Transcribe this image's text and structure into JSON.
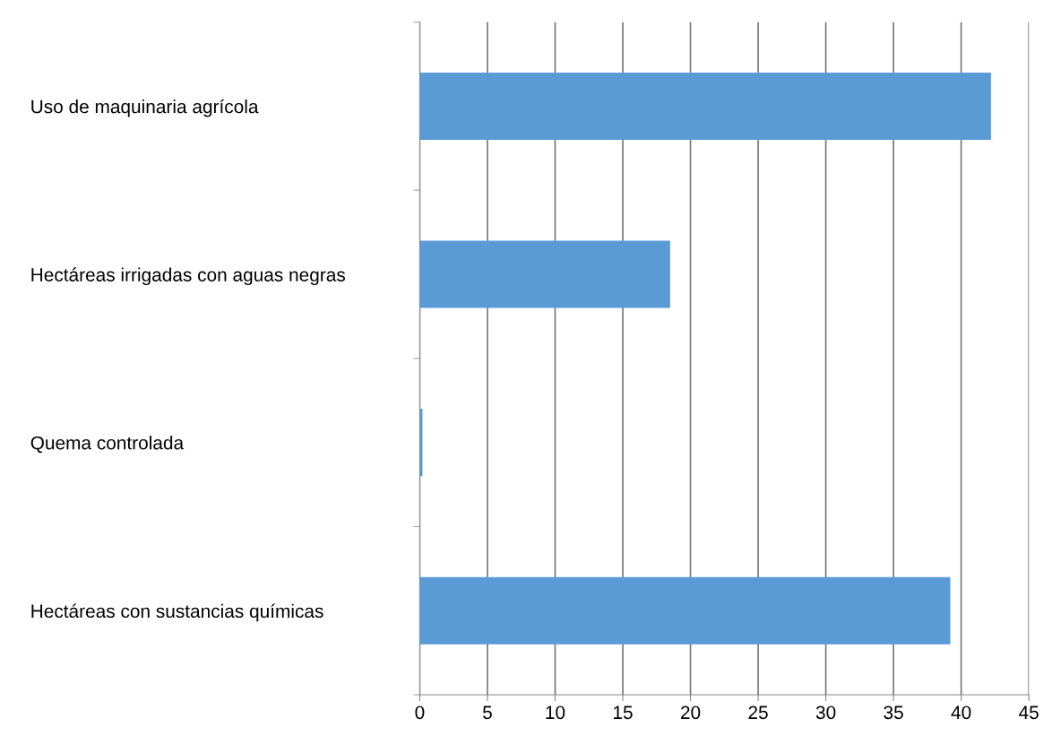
{
  "chart_data": {
    "type": "bar",
    "orientation": "horizontal",
    "categories": [
      "Uso de maquinaria agrícola",
      "Hectáreas irrigadas con aguas negras",
      "Quema controlada",
      "Hectáreas con sustancias químicas"
    ],
    "values": [
      42.2,
      18.5,
      0.2,
      39.2
    ],
    "color": "#5b9bd5",
    "xlim": [
      0,
      45
    ],
    "xticks": [
      0,
      5,
      10,
      15,
      20,
      25,
      30,
      35,
      40,
      45
    ],
    "grid": "x"
  }
}
